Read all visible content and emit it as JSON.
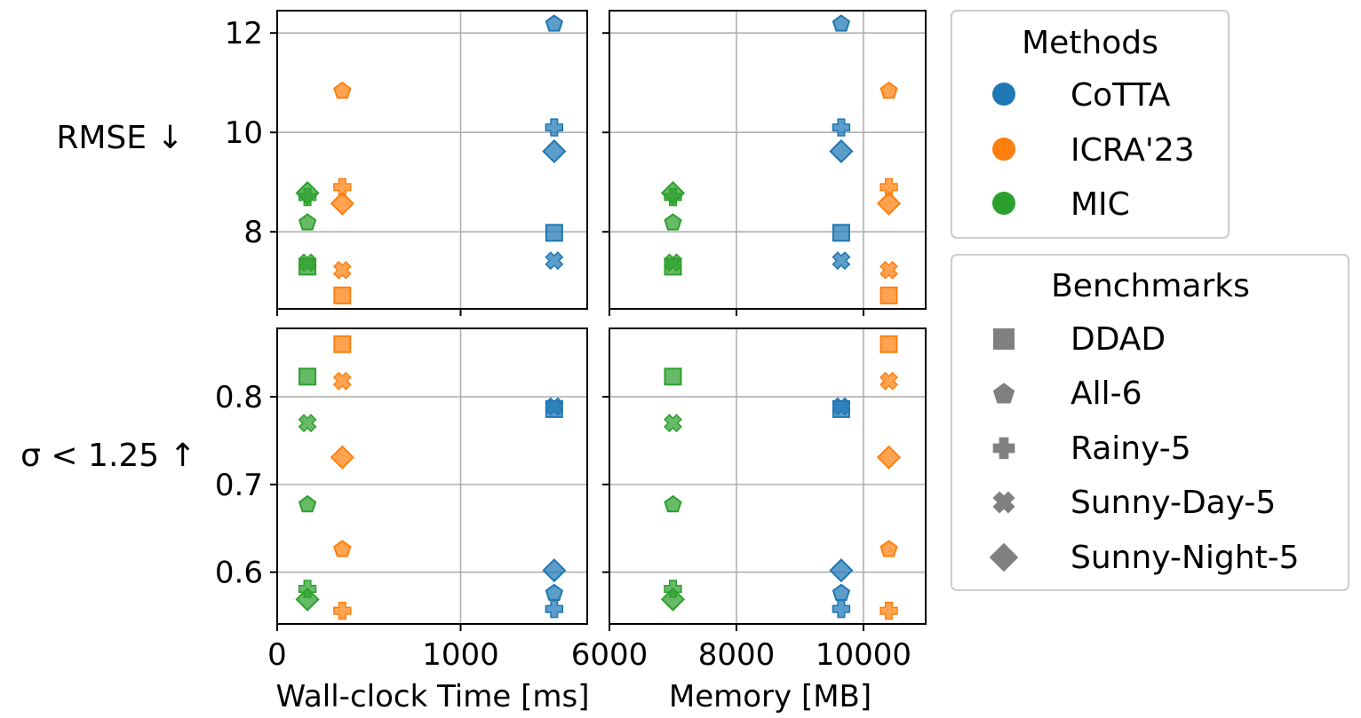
{
  "chart_data": {
    "type": "scatter",
    "methods": [
      {
        "name": "CoTTA",
        "color": "#1f77b4"
      },
      {
        "name": "ICRA'23",
        "color": "#ff7f0e"
      },
      {
        "name": "MIC",
        "color": "#2ca02c"
      }
    ],
    "benchmarks": [
      {
        "name": "DDAD",
        "marker": "square"
      },
      {
        "name": "All-6",
        "marker": "pentagon"
      },
      {
        "name": "Rainy-5",
        "marker": "plus"
      },
      {
        "name": "Sunny-Day-5",
        "marker": "x"
      },
      {
        "name": "Sunny-Night-5",
        "marker": "diamond"
      }
    ],
    "resources": {
      "time_ms": {
        "CoTTA": 1510,
        "ICRA'23": 355,
        "MIC": 165
      },
      "memory_mb": {
        "CoTTA": 9650,
        "ICRA'23": 10400,
        "MIC": 7000
      }
    },
    "metrics": [
      {
        "ylabel": "RMSE ↓",
        "ylim": [
          6.45,
          12.45
        ],
        "yticks": [
          {
            "v": 8,
            "label": "8"
          },
          {
            "v": 10,
            "label": "10"
          },
          {
            "v": 12,
            "label": "12"
          }
        ],
        "values": {
          "CoTTA": {
            "DDAD": 7.98,
            "All-6": 12.2,
            "Rainy-5": 10.1,
            "Sunny-Day-5": 7.42,
            "Sunny-Night-5": 9.62
          },
          "ICRA'23": {
            "DDAD": 6.72,
            "All-6": 10.85,
            "Rainy-5": 8.9,
            "Sunny-Day-5": 7.23,
            "Sunny-Night-5": 8.57
          },
          "MIC": {
            "DDAD": 7.3,
            "All-6": 8.2,
            "Rainy-5": 8.7,
            "Sunny-Day-5": 7.38,
            "Sunny-Night-5": 8.78
          }
        }
      },
      {
        "ylabel": "σ < 1.25 ↑",
        "ylim": [
          0.541,
          0.878
        ],
        "yticks": [
          {
            "v": 0.6,
            "label": "0.6"
          },
          {
            "v": 0.7,
            "label": "0.7"
          },
          {
            "v": 0.8,
            "label": "0.8"
          }
        ],
        "values": {
          "CoTTA": {
            "DDAD": 0.786,
            "All-6": 0.577,
            "Rainy-5": 0.558,
            "Sunny-Day-5": 0.789,
            "Sunny-Night-5": 0.602
          },
          "ICRA'23": {
            "DDAD": 0.86,
            "All-6": 0.627,
            "Rainy-5": 0.556,
            "Sunny-Day-5": 0.818,
            "Sunny-Night-5": 0.731
          },
          "MIC": {
            "DDAD": 0.823,
            "All-6": 0.678,
            "Rainy-5": 0.581,
            "Sunny-Day-5": 0.77,
            "Sunny-Night-5": 0.569
          }
        }
      }
    ],
    "columns": [
      {
        "key": "time_ms",
        "xlabel": "Wall-clock Time [ms]",
        "xlim": [
          0,
          1690
        ],
        "xticks": [
          {
            "v": 0,
            "label": "0"
          },
          {
            "v": 1000,
            "label": "1000"
          }
        ]
      },
      {
        "key": "memory_mb",
        "xlabel": "Memory [MB]",
        "xlim": [
          6000,
          10980
        ],
        "xticks": [
          {
            "v": 6000,
            "label": "6000"
          },
          {
            "v": 8000,
            "label": "8000"
          },
          {
            "v": 10000,
            "label": "10000"
          }
        ]
      }
    ],
    "grid": true,
    "legends": [
      {
        "title": "Methods",
        "placement": "right-top"
      },
      {
        "title": "Benchmarks",
        "placement": "right-bottom"
      }
    ]
  }
}
